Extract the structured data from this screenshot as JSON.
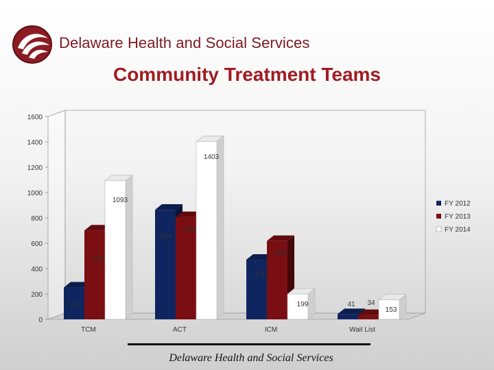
{
  "header": {
    "org_name": "Delaware Health and Social Services",
    "logo_icon": "dhss-swirl-logo-icon"
  },
  "footer": {
    "text": "Delaware Health and Social Services"
  },
  "colors": {
    "fy2012": "#0f2560",
    "fy2013": "#7a0e12",
    "fy2014": "#ffffff",
    "title": "#a11b22"
  },
  "chart_data": {
    "type": "bar",
    "title": "Community Treatment Teams",
    "categories": [
      "TCM",
      "ACT",
      "ICM",
      "Wait List"
    ],
    "series": [
      {
        "name": "FY 2012",
        "values": [
          251,
          864,
          470,
          41
        ]
      },
      {
        "name": "FY 2013",
        "values": [
          701,
          806,
          618,
          34
        ]
      },
      {
        "name": "FY 2014",
        "values": [
          1093,
          1403,
          199,
          153
        ]
      }
    ],
    "ylim": [
      0,
      1600
    ],
    "yticks": [
      0,
      200,
      400,
      600,
      800,
      1000,
      1200,
      1400,
      1600
    ],
    "legend": "right",
    "grid": false,
    "style": "3d"
  }
}
